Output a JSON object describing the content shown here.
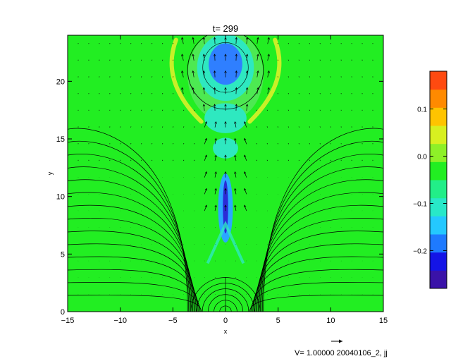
{
  "chart_data": [
    {
      "type": "heatmap",
      "title": "t= 299",
      "xlabel": "x",
      "ylabel": "y",
      "xlim": [
        -15,
        15
      ],
      "ylim": [
        0,
        24
      ],
      "x_ticks": [
        -15,
        -10,
        -5,
        0,
        5,
        10,
        15
      ],
      "y_ticks": [
        0,
        5,
        10,
        15,
        20
      ],
      "background_color": "#22ee22",
      "features": [
        {
          "name": "blue-core",
          "cx": 0,
          "cy": 21.5,
          "rx": 1.6,
          "ry": 1.8,
          "color": "#2f7fff"
        },
        {
          "name": "cyan-ring",
          "cx": 0,
          "cy": 21.2,
          "rx": 2.7,
          "ry": 2.9,
          "color": "#2ee8c0"
        },
        {
          "name": "outer-ring",
          "cx": 0,
          "cy": 20.5,
          "rx": 3.6,
          "ry": 4.0,
          "color": "#55e85a"
        },
        {
          "name": "lower-cyan-band",
          "cx": 0,
          "cy": 16.8,
          "rx": 2.0,
          "ry": 1.3,
          "color": "#2ee8c0"
        },
        {
          "name": "mid-cyan-band",
          "cx": 0,
          "cy": 14.2,
          "rx": 1.2,
          "ry": 0.9,
          "color": "#2ee8c0"
        },
        {
          "name": "current-sheet",
          "cx": 0,
          "cy": 9.1,
          "rx": 0.25,
          "ry": 2.3,
          "color": "#2b2bd6"
        },
        {
          "name": "current-sheet-halo",
          "cx": 0,
          "cy": 9.0,
          "rx": 0.7,
          "ry": 3.0,
          "color": "#2aa8ff"
        }
      ],
      "arc_features": [
        {
          "name": "left-yellow-arc",
          "color": "#c8f028"
        },
        {
          "name": "right-yellow-arc",
          "color": "#c8f028"
        }
      ],
      "field_line_count": 14,
      "flux_rope_center": [
        0,
        21
      ],
      "flux_rope_radius": 3.6,
      "vector_reference_label": "V= 1.00000 20040106_2, jj"
    },
    {
      "type": "colorbar",
      "ticks": [
        0.1,
        0.0,
        -0.1,
        -0.2
      ],
      "tick_labels": [
        "0.1",
        "0.0",
        "−0.1",
        "−0.2"
      ],
      "range": [
        -0.28,
        0.18
      ],
      "colors": [
        "#3a12a8",
        "#1414e6",
        "#1e7aff",
        "#24c8ff",
        "#28e8c8",
        "#22ee88",
        "#22ee22",
        "#8ef028",
        "#d8f020",
        "#ffc400",
        "#ff8a00",
        "#ff4a10"
      ]
    }
  ]
}
